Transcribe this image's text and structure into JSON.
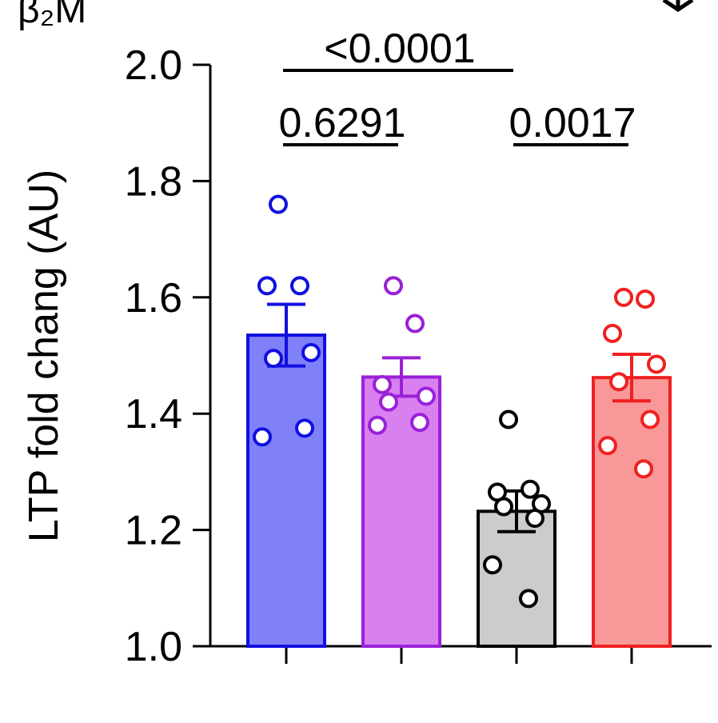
{
  "corner_label": "β₂M",
  "chart_data": {
    "type": "bar",
    "ylabel": "LTP fold chang (AU)",
    "xlabel": "",
    "ylim": [
      1.0,
      2.0
    ],
    "yticks": [
      "1.0",
      "1.2",
      "1.4",
      "1.6",
      "1.8",
      "2.0"
    ],
    "bars": [
      {
        "value": 1.535,
        "sem": 0.053,
        "fill": "#8080f8",
        "stroke": "#1010e0",
        "points": [
          1.76,
          1.62,
          1.62,
          1.505,
          1.495,
          1.375,
          1.36
        ]
      },
      {
        "value": 1.463,
        "sem": 0.033,
        "fill": "#d880f0",
        "stroke": "#9a20d8",
        "points": [
          1.62,
          1.555,
          1.45,
          1.43,
          1.42,
          1.385,
          1.38
        ]
      },
      {
        "value": 1.232,
        "sem": 0.035,
        "fill": "#cccccc",
        "stroke": "#000000",
        "points": [
          1.39,
          1.27,
          1.265,
          1.245,
          1.24,
          1.22,
          1.14,
          1.082
        ]
      },
      {
        "value": 1.462,
        "sem": 0.04,
        "fill": "#f89898",
        "stroke": "#f02020",
        "points": [
          1.6,
          1.597,
          1.538,
          1.485,
          1.455,
          1.39,
          1.345,
          1.305
        ]
      }
    ],
    "comparisons": [
      {
        "label": "<0.0001",
        "from": 0,
        "to": 2,
        "tier": 2
      },
      {
        "label": "0.6291",
        "from": 0,
        "to": 1,
        "tier": 1
      },
      {
        "label": "0.0017",
        "from": 2,
        "to": 3,
        "tier": 1
      }
    ]
  }
}
